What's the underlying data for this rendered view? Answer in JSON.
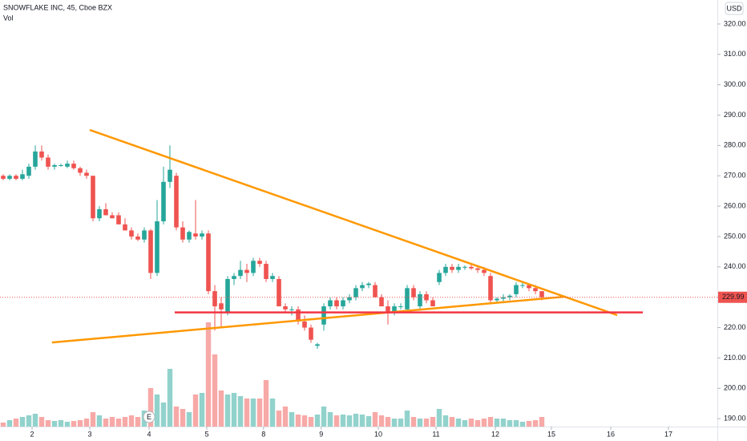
{
  "chart_data": {
    "type": "candlestick",
    "title": "SNOWFLAKE INC, 45, Cboe BZX",
    "volume_label": "Vol",
    "currency": "USD",
    "earnings_marker": "E",
    "earnings_x": 22.75,
    "up_color": "#26a69a",
    "down_color": "#ef5350",
    "grid": false,
    "last_price": 229.99,
    "x": [
      0,
      1,
      2,
      3,
      4,
      5,
      6,
      7,
      8,
      9,
      10,
      11,
      12,
      13,
      14,
      15,
      16,
      17,
      18,
      19,
      20,
      21,
      22,
      23,
      24,
      25,
      26,
      27,
      28,
      29,
      30,
      31,
      32,
      33,
      34,
      35,
      36,
      37,
      38,
      39,
      40,
      41,
      42,
      43,
      44,
      45,
      46,
      47,
      48,
      49,
      50,
      51,
      52,
      53,
      54,
      55,
      56,
      57,
      58,
      59,
      60,
      61,
      62,
      63,
      64,
      65,
      66,
      67,
      68,
      69,
      70,
      71,
      72,
      73,
      74,
      75,
      76,
      77,
      78,
      79,
      80,
      81,
      82,
      83,
      84
    ],
    "open": [
      270,
      269,
      270,
      269,
      270,
      273,
      278,
      276,
      273,
      273.5,
      273,
      274,
      272.5,
      271,
      270,
      256,
      259,
      257,
      257,
      254,
      252,
      250,
      249,
      252,
      238,
      255,
      268,
      270,
      253,
      249,
      251,
      250,
      251,
      232,
      228,
      225,
      236,
      237,
      239,
      238,
      242,
      241,
      236,
      236,
      227,
      226,
      226,
      222,
      220,
      214,
      221,
      227,
      229,
      227,
      229,
      230,
      233,
      234,
      234,
      230,
      227,
      225,
      227,
      226,
      233,
      227,
      231,
      229,
      235,
      238,
      240,
      239,
      240,
      240,
      239.5,
      239,
      237,
      229,
      229.5,
      230,
      231,
      234,
      234,
      233,
      232
    ],
    "high": [
      270.5,
      270.5,
      270.5,
      272,
      274,
      280,
      280,
      277,
      274,
      274,
      275,
      275,
      273,
      272,
      270,
      260,
      261,
      258,
      258,
      256,
      253,
      251,
      253,
      252.5,
      262,
      273,
      280,
      271,
      255,
      252,
      262,
      252,
      252,
      234,
      230,
      237,
      238,
      242,
      241,
      243,
      243,
      242,
      238,
      237,
      228,
      227,
      227,
      224,
      221,
      215,
      228,
      230,
      230,
      230,
      231,
      234,
      235,
      235,
      235,
      231,
      229,
      228,
      228,
      234,
      234,
      232,
      232,
      230,
      239,
      241,
      241,
      241,
      240.5,
      241,
      240,
      240,
      238,
      230,
      231,
      231,
      235,
      235,
      234.5,
      234,
      232
    ],
    "low": [
      268.5,
      268.5,
      268.5,
      268.5,
      269,
      272,
      275,
      272,
      272,
      273,
      272.5,
      272,
      270,
      269,
      255,
      255,
      257,
      256,
      254,
      252,
      249,
      248.5,
      248,
      236,
      237,
      254,
      266,
      252,
      248,
      248,
      249,
      249,
      231,
      219,
      220,
      224,
      234,
      236,
      235,
      237,
      240,
      235,
      235,
      227,
      225,
      224,
      221,
      219,
      215,
      213,
      219,
      226,
      226,
      226,
      228,
      229,
      232,
      233,
      230,
      227,
      221,
      224,
      226,
      225,
      229,
      226,
      228,
      227,
      234,
      237,
      238,
      238,
      239,
      239,
      238,
      237,
      228,
      228,
      228,
      229,
      230,
      233,
      232,
      231,
      229
    ],
    "close": [
      269,
      270,
      269,
      270.5,
      273,
      278,
      276,
      273,
      273.5,
      273.5,
      274,
      272.5,
      271,
      270,
      256,
      259,
      257,
      256,
      254,
      252,
      250,
      249,
      252,
      238,
      255,
      268,
      272,
      253,
      249,
      251.5,
      250,
      251,
      232,
      227,
      226,
      236,
      237,
      239,
      238,
      242,
      241,
      236,
      237,
      227,
      226,
      226,
      222,
      220,
      216,
      214.5,
      227,
      229,
      227,
      229,
      230,
      233,
      234,
      234.5,
      230,
      227,
      225,
      227,
      227,
      233,
      230,
      231,
      229,
      227,
      238,
      240,
      239,
      240,
      240,
      239.5,
      239,
      238,
      229,
      229.5,
      230,
      230.5,
      234,
      234,
      233,
      232,
      230
    ],
    "volume": [
      5,
      8,
      10,
      12,
      14,
      16,
      12,
      8,
      7,
      8,
      6,
      7,
      8,
      10,
      18,
      14,
      10,
      12,
      10,
      12,
      14,
      12,
      20,
      48,
      40,
      30,
      72,
      25,
      22,
      18,
      40,
      42,
      130,
      90,
      45,
      40,
      42,
      38,
      35,
      35,
      35,
      58,
      35,
      20,
      25,
      18,
      15,
      14,
      12,
      15,
      25,
      18,
      14,
      15,
      14,
      16,
      15,
      13,
      18,
      14,
      12,
      10,
      10,
      20,
      12,
      10,
      10,
      12,
      22,
      14,
      12,
      10,
      8,
      10,
      8,
      10,
      12,
      10,
      10,
      8,
      8,
      6,
      7,
      8,
      12
    ],
    "trendlines": [
      {
        "color": "#ff9800",
        "x": [
          13.5,
          95.75
        ],
        "y": [
          285.1,
          224.1
        ]
      },
      {
        "color": "#ff9800",
        "x": [
          7.6,
          87.75
        ],
        "y": [
          215.1,
          230.2
        ]
      },
      {
        "color": "#f23645",
        "x": [
          26.75,
          99.75
        ],
        "y": [
          225,
          225
        ]
      }
    ],
    "xlim": [
      -0.5,
      111.375
    ],
    "xticks": [
      {
        "value": 4.5,
        "label": "2"
      },
      {
        "value": 13.5,
        "label": "3"
      },
      {
        "value": 22.75,
        "label": "4"
      },
      {
        "value": 31.75,
        "label": "5"
      },
      {
        "value": 40.6,
        "label": "8"
      },
      {
        "value": 49.6,
        "label": "9"
      },
      {
        "value": 58.5,
        "label": "10"
      },
      {
        "value": 67.5,
        "label": "11"
      },
      {
        "value": 76.75,
        "label": "12"
      },
      {
        "value": 85.5,
        "label": "15"
      },
      {
        "value": 94.75,
        "label": "16"
      },
      {
        "value": 103.75,
        "label": "17"
      }
    ],
    "ylim": [
      187.4,
      327.9
    ],
    "yticks": [
      {
        "value": 190,
        "label": "190.00"
      },
      {
        "value": 200,
        "label": "200.00"
      },
      {
        "value": 210,
        "label": "210.00"
      },
      {
        "value": 220,
        "label": "220.00"
      },
      {
        "value": 230,
        "label": "230.00"
      },
      {
        "value": 240,
        "label": "240.00"
      },
      {
        "value": 250,
        "label": "250.00"
      },
      {
        "value": 260,
        "label": "260.00"
      },
      {
        "value": 270,
        "label": "270.00"
      },
      {
        "value": 280,
        "label": "280.00"
      },
      {
        "value": 290,
        "label": "290.00"
      },
      {
        "value": 300,
        "label": "300.00"
      },
      {
        "value": 310,
        "label": "310.00"
      },
      {
        "value": 320,
        "label": "320.00"
      }
    ]
  }
}
